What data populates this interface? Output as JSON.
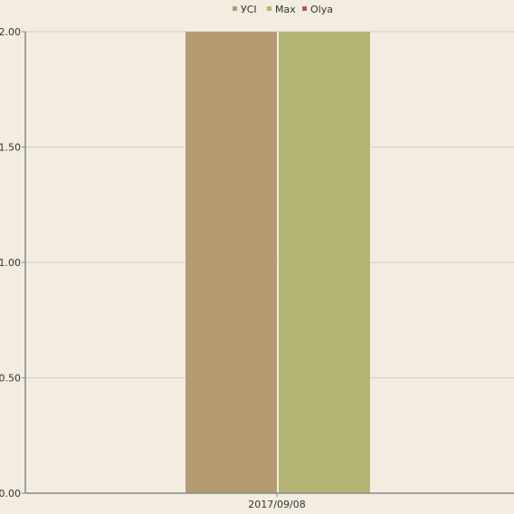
{
  "chart_data": {
    "type": "bar",
    "categories": [
      "2017/09/08"
    ],
    "series": [
      {
        "name": "УСІ",
        "values": [
          2.0
        ],
        "color": "#b49b72"
      },
      {
        "name": "Max",
        "values": [
          2.0
        ],
        "color": "#b4b574"
      },
      {
        "name": "Olya",
        "values": [
          0
        ],
        "color": "#b5575f"
      }
    ],
    "ylim": [
      0,
      2.0
    ],
    "yticks": [
      "0.00",
      "0.50",
      "1.00",
      "1.50",
      "2.00"
    ],
    "grid": true,
    "legend_position": "top-center",
    "background_color": "#f3ece1"
  }
}
